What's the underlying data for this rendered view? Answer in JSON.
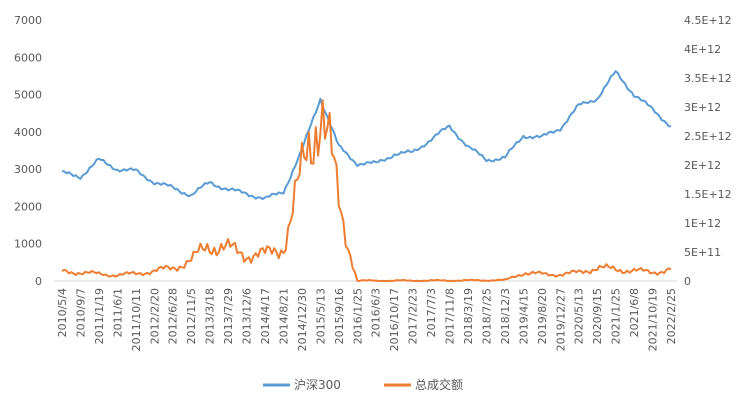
{
  "chart_data": {
    "type": "line",
    "title": "",
    "xlabel": "",
    "ylabel": "",
    "legend_position": "bottom",
    "grid": false,
    "x_tick_labels": [
      "2010/5/4",
      "2010/9/7",
      "2011/1/19",
      "2011/6/1",
      "2011/10/11",
      "2012/2/20",
      "2012/6/28",
      "2012/11/5",
      "2013/3/18",
      "2013/7/29",
      "2013/12/6",
      "2014/4/17",
      "2014/8/21",
      "2014/12/30",
      "2015/5/13",
      "2015/9/16",
      "2016/1/25",
      "2016/6/3",
      "2016/10/17",
      "2017/2/23",
      "2017/7/3",
      "2017/11/8",
      "2018/3/19",
      "2018/7/25",
      "2018/12/3",
      "2019/4/15",
      "2019/8/20",
      "2019/12/27",
      "2020/5/13",
      "2020/9/15",
      "2021/1/25",
      "2021/6/8",
      "2021/10/19",
      "2022/2/25"
    ],
    "y_left": {
      "ticks": [
        "0",
        "1000",
        "2000",
        "3000",
        "4000",
        "5000",
        "6000",
        "7000"
      ],
      "ylim": [
        0,
        7000
      ]
    },
    "y_right": {
      "ticks": [
        "0",
        "5E+11",
        "1E+12",
        "1.5E+12",
        "2E+12",
        "2.5E+12",
        "3E+12",
        "3.5E+12",
        "4E+12",
        "4.5E+12"
      ],
      "ylim": [
        0,
        4500000000000.0
      ]
    },
    "x_count": 34,
    "series": [
      {
        "name": "沪深300",
        "axis": "left",
        "color": "#5B9BD5",
        "values": [
          2900,
          2800,
          3250,
          3000,
          2950,
          2650,
          2500,
          2300,
          2650,
          2450,
          2350,
          2200,
          2400,
          3500,
          4900,
          3600,
          3150,
          3150,
          3400,
          3450,
          3800,
          4150,
          3600,
          3250,
          3300,
          3900,
          3850,
          4100,
          4700,
          4900,
          5600,
          5000,
          4600,
          4150
        ]
      },
      {
        "name": "总成交额",
        "axis": "right",
        "color": "#ED7D31",
        "values": [
          160000000000.0,
          150000000000.0,
          120000000000.0,
          100000000000.0,
          130000000000.0,
          170000000000.0,
          230000000000.0,
          350000000000.0,
          640000000000.0,
          550000000000.0,
          460000000000.0,
          450000000000.0,
          600000000000.0,
          1800000000000.0,
          3200000000000.0,
          1300000000000.0,
          5000000000.0,
          4000000000.0,
          5000000000.0,
          5000000000.0,
          6000000000.0,
          7000000000.0,
          10000000000.0,
          12000000000.0,
          15000000000.0,
          140000000000.0,
          120000000000.0,
          110000000000.0,
          150000000000.0,
          230000000000.0,
          200000000000.0,
          180000000000.0,
          150000000000.0,
          200000000000.0
        ]
      }
    ]
  }
}
